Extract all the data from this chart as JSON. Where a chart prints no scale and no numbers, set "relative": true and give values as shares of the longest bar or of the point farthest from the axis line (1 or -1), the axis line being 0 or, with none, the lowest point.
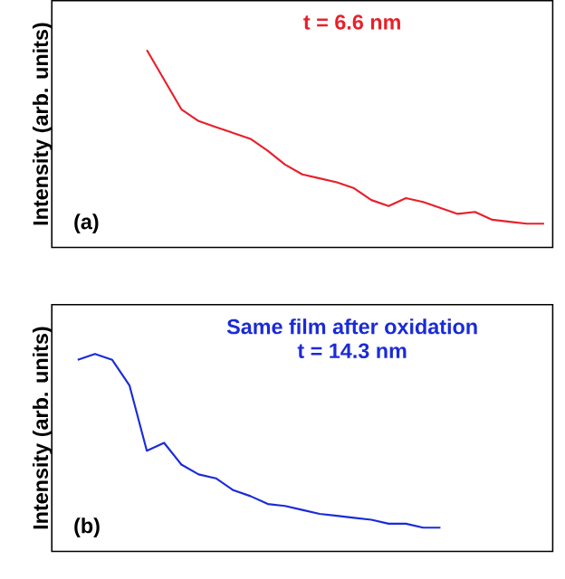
{
  "chart_data": [
    {
      "type": "line",
      "relative": true,
      "ylabel": "Intensity (arb. units)",
      "categories": [
        null,
        null,
        null,
        null,
        null,
        null,
        null,
        null,
        null,
        null,
        null,
        null,
        null,
        null,
        null,
        null,
        null,
        null,
        null,
        null,
        null,
        null,
        null,
        null,
        null,
        null,
        null,
        null,
        null
      ],
      "series": [
        {
          "color": "#e8202a",
          "values": [
            null,
            null,
            null,
            null,
            null,
            1,
            0.85,
            0.7,
            0.64,
            0.61,
            0.58,
            0.55,
            0.49,
            0.42,
            0.37,
            0.35,
            0.33,
            0.3,
            0.24,
            0.21,
            0.25,
            0.23,
            0.2,
            0.17,
            0.18,
            0.14,
            0.13,
            0.12,
            0.12
          ]
        }
      ],
      "annotations": [
        "t = 6.6 nm",
        "(a)"
      ]
    },
    {
      "type": "line",
      "relative": true,
      "ylabel": "Intensity (arb. units)",
      "categories": [
        null,
        null,
        null,
        null,
        null,
        null,
        null,
        null,
        null,
        null,
        null,
        null,
        null,
        null,
        null,
        null,
        null,
        null,
        null,
        null,
        null,
        null,
        null,
        null,
        null,
        null,
        null,
        null,
        null
      ],
      "series": [
        {
          "color": "#1a2bd8",
          "values": [
            null,
            0.97,
            1,
            0.97,
            0.84,
            0.51,
            0.55,
            0.44,
            0.39,
            0.37,
            0.31,
            0.28,
            0.24,
            0.23,
            0.21,
            0.19,
            0.18,
            0.17,
            0.16,
            0.14,
            0.14,
            0.12,
            0.12,
            null,
            null,
            null,
            null,
            null,
            null
          ]
        }
      ],
      "annotations": [
        "Same film after oxidation",
        "t = 14.3 nm",
        "(b)"
      ]
    }
  ]
}
